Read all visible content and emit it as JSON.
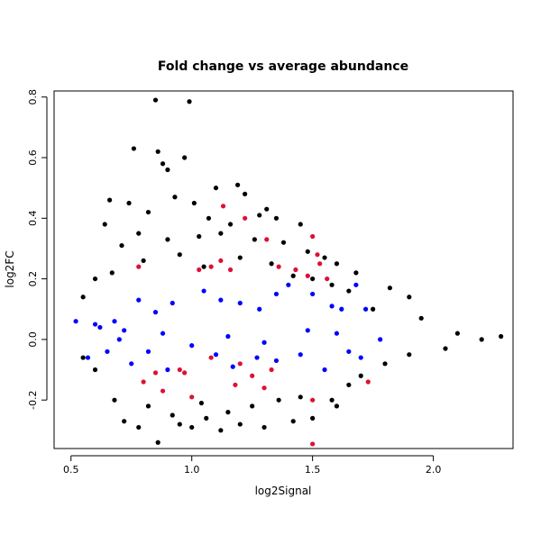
{
  "chart_data": {
    "type": "scatter",
    "title": "Fold change vs average abundance",
    "xlabel": "log2Signal",
    "ylabel": "log2FC",
    "xlim": [
      0.43,
      2.33
    ],
    "ylim": [
      -0.36,
      0.82
    ],
    "x_ticks": [
      0.5,
      1.0,
      1.5,
      2.0
    ],
    "x_tick_labels": [
      "0.5",
      "1.0",
      "1.5",
      "2.0"
    ],
    "y_ticks": [
      -0.2,
      0.0,
      0.2,
      0.4,
      0.6,
      0.8
    ],
    "y_tick_labels": [
      "-0.2",
      "0.0",
      "0.2",
      "0.4",
      "0.6",
      "0.8"
    ],
    "grid": false,
    "series": [
      {
        "color": "#000000",
        "points": [
          [
            0.85,
            0.79
          ],
          [
            0.99,
            0.785
          ],
          [
            0.76,
            0.63
          ],
          [
            0.86,
            0.62
          ],
          [
            0.97,
            0.6
          ],
          [
            0.9,
            0.56
          ],
          [
            0.88,
            0.58
          ],
          [
            0.66,
            0.46
          ],
          [
            0.74,
            0.45
          ],
          [
            0.93,
            0.47
          ],
          [
            1.01,
            0.45
          ],
          [
            1.1,
            0.5
          ],
          [
            1.19,
            0.51
          ],
          [
            1.22,
            0.48
          ],
          [
            1.28,
            0.41
          ],
          [
            1.31,
            0.43
          ],
          [
            1.45,
            0.38
          ],
          [
            1.35,
            0.4
          ],
          [
            1.16,
            0.38
          ],
          [
            1.07,
            0.4
          ],
          [
            0.82,
            0.42
          ],
          [
            0.78,
            0.35
          ],
          [
            0.64,
            0.38
          ],
          [
            0.71,
            0.31
          ],
          [
            0.9,
            0.33
          ],
          [
            1.03,
            0.34
          ],
          [
            1.12,
            0.35
          ],
          [
            1.26,
            0.33
          ],
          [
            1.38,
            0.32
          ],
          [
            1.48,
            0.29
          ],
          [
            1.55,
            0.27
          ],
          [
            1.6,
            0.25
          ],
          [
            1.68,
            0.22
          ],
          [
            1.82,
            0.17
          ],
          [
            1.9,
            0.14
          ],
          [
            0.55,
            0.14
          ],
          [
            0.6,
            0.2
          ],
          [
            0.67,
            0.22
          ],
          [
            0.8,
            0.26
          ],
          [
            0.95,
            0.28
          ],
          [
            1.05,
            0.24
          ],
          [
            1.2,
            0.27
          ],
          [
            1.33,
            0.25
          ],
          [
            1.42,
            0.21
          ],
          [
            1.5,
            0.2
          ],
          [
            1.58,
            0.18
          ],
          [
            1.65,
            0.16
          ],
          [
            1.75,
            0.1
          ],
          [
            1.95,
            0.07
          ],
          [
            0.72,
            -0.27
          ],
          [
            0.78,
            -0.29
          ],
          [
            0.86,
            -0.34
          ],
          [
            0.95,
            -0.28
          ],
          [
            1.0,
            -0.29
          ],
          [
            1.06,
            -0.26
          ],
          [
            1.12,
            -0.3
          ],
          [
            1.2,
            -0.28
          ],
          [
            1.3,
            -0.29
          ],
          [
            1.42,
            -0.27
          ],
          [
            1.5,
            -0.26
          ],
          [
            1.58,
            -0.2
          ],
          [
            1.65,
            -0.15
          ],
          [
            1.7,
            -0.12
          ],
          [
            1.6,
            -0.22
          ],
          [
            0.68,
            -0.2
          ],
          [
            0.82,
            -0.22
          ],
          [
            0.92,
            -0.25
          ],
          [
            1.04,
            -0.21
          ],
          [
            1.15,
            -0.24
          ],
          [
            1.25,
            -0.22
          ],
          [
            1.36,
            -0.2
          ],
          [
            1.45,
            -0.19
          ],
          [
            0.6,
            -0.1
          ],
          [
            0.55,
            -0.06
          ],
          [
            1.8,
            -0.08
          ],
          [
            1.9,
            -0.05
          ],
          [
            2.05,
            -0.03
          ],
          [
            2.1,
            0.02
          ],
          [
            2.2,
            0.0
          ],
          [
            2.28,
            0.01
          ]
        ]
      },
      {
        "color": "#0000ff",
        "points": [
          [
            0.52,
            0.06
          ],
          [
            0.6,
            0.05
          ],
          [
            0.72,
            0.03
          ],
          [
            0.78,
            0.13
          ],
          [
            0.85,
            0.09
          ],
          [
            0.92,
            0.12
          ],
          [
            1.05,
            0.16
          ],
          [
            1.12,
            0.13
          ],
          [
            1.2,
            0.12
          ],
          [
            1.28,
            0.1
          ],
          [
            1.35,
            0.15
          ],
          [
            1.4,
            0.18
          ],
          [
            1.5,
            0.15
          ],
          [
            1.58,
            0.11
          ],
          [
            1.62,
            0.1
          ],
          [
            1.68,
            0.18
          ],
          [
            1.72,
            0.1
          ],
          [
            1.6,
            0.02
          ],
          [
            0.57,
            -0.06
          ],
          [
            0.65,
            -0.04
          ],
          [
            0.75,
            -0.08
          ],
          [
            0.82,
            -0.04
          ],
          [
            0.9,
            -0.1
          ],
          [
            1.0,
            -0.02
          ],
          [
            1.1,
            -0.05
          ],
          [
            1.17,
            -0.09
          ],
          [
            1.27,
            -0.06
          ],
          [
            1.35,
            -0.07
          ],
          [
            1.45,
            -0.05
          ],
          [
            1.55,
            -0.1
          ],
          [
            1.65,
            -0.04
          ],
          [
            1.7,
            -0.06
          ],
          [
            0.7,
            0.0
          ],
          [
            0.88,
            0.02
          ],
          [
            1.15,
            0.01
          ],
          [
            1.3,
            -0.01
          ],
          [
            1.48,
            0.03
          ],
          [
            1.78,
            0.0
          ],
          [
            0.62,
            0.04
          ],
          [
            0.68,
            0.06
          ]
        ]
      },
      {
        "color": "#dd1133",
        "points": [
          [
            1.03,
            0.23
          ],
          [
            1.08,
            0.24
          ],
          [
            1.13,
            0.44
          ],
          [
            1.12,
            0.26
          ],
          [
            1.16,
            0.23
          ],
          [
            1.22,
            0.4
          ],
          [
            1.31,
            0.33
          ],
          [
            1.36,
            0.24
          ],
          [
            1.43,
            0.23
          ],
          [
            1.48,
            0.21
          ],
          [
            1.5,
            0.34
          ],
          [
            1.52,
            0.28
          ],
          [
            1.53,
            0.25
          ],
          [
            1.56,
            0.2
          ],
          [
            0.78,
            0.24
          ],
          [
            0.85,
            -0.11
          ],
          [
            0.95,
            -0.1
          ],
          [
            0.97,
            -0.11
          ],
          [
            1.0,
            -0.19
          ],
          [
            0.88,
            -0.17
          ],
          [
            0.8,
            -0.14
          ],
          [
            1.18,
            -0.15
          ],
          [
            1.25,
            -0.12
          ],
          [
            1.3,
            -0.16
          ],
          [
            1.33,
            -0.1
          ],
          [
            1.5,
            -0.2
          ],
          [
            1.5,
            -0.345
          ],
          [
            1.73,
            -0.14
          ],
          [
            1.2,
            -0.08
          ],
          [
            1.08,
            -0.06
          ]
        ]
      }
    ]
  }
}
